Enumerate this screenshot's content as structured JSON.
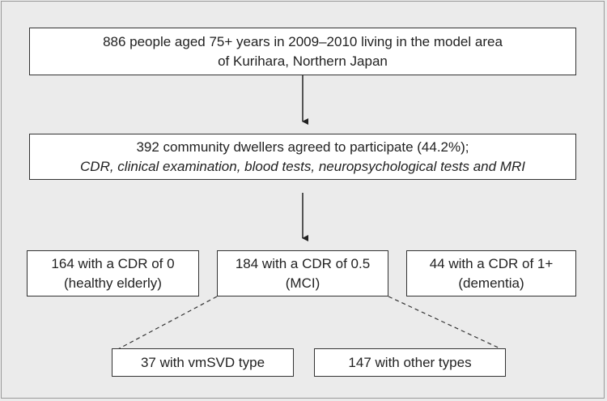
{
  "boxes": {
    "top": {
      "line1": "886 people aged 75+ years in 2009–2010 living in the model area",
      "line2": "of Kurihara, Northern Japan"
    },
    "middle": {
      "line1": "392 community dwellers agreed to participate (44.2%);",
      "line2": "CDR, clinical examination, blood tests, neuropsychological tests and MRI"
    },
    "cdr0": {
      "line1": "164 with a CDR of 0",
      "line2": "(healthy elderly)"
    },
    "cdr05": {
      "line1": "184 with a CDR of 0.5",
      "line2": "(MCI)"
    },
    "cdr1": {
      "line1": "44 with a CDR of 1+",
      "line2": "(dementia)"
    },
    "vmsvd": {
      "line1": "37 with vmSVD type"
    },
    "other": {
      "line1": "147 with other types"
    }
  },
  "colors": {
    "background": "#ebebeb",
    "box": "#ffffff",
    "stroke": "#333333"
  }
}
